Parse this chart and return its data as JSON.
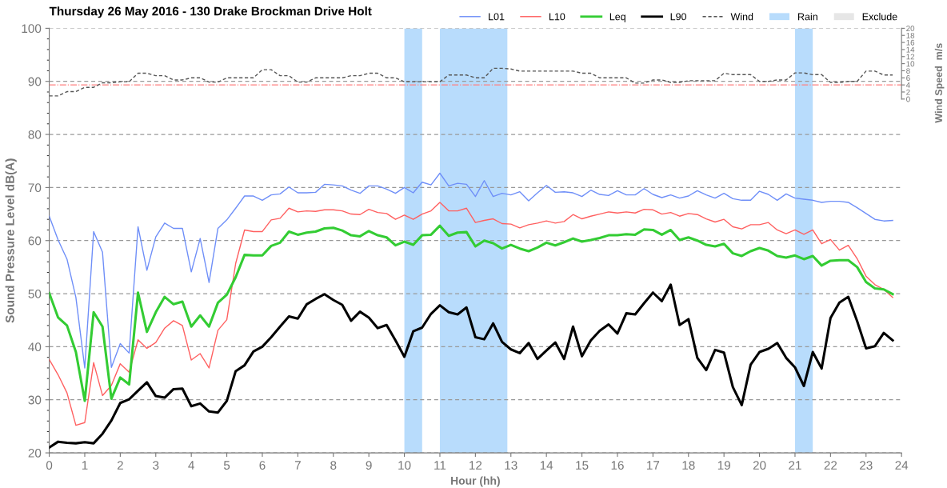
{
  "chart_data": {
    "type": "line",
    "title": "Thursday 26 May 2016 - 130 Drake Brockman Drive Holt",
    "xlabel": "Hour (hh)",
    "ylabel": "Sound Pressure Level dB(A)",
    "y2label": "Wind Speed  m/s",
    "x": [
      0,
      0.25,
      0.5,
      0.75,
      1,
      1.25,
      1.5,
      1.75,
      2,
      2.25,
      2.5,
      2.75,
      3,
      3.25,
      3.5,
      3.75,
      4,
      4.25,
      4.5,
      4.75,
      5,
      5.25,
      5.5,
      5.75,
      6,
      6.25,
      6.5,
      6.75,
      7,
      7.25,
      7.5,
      7.75,
      8,
      8.25,
      8.5,
      8.75,
      9,
      9.25,
      9.5,
      9.75,
      10,
      10.25,
      10.5,
      10.75,
      11,
      11.25,
      11.5,
      11.75,
      12,
      12.25,
      12.5,
      12.75,
      13,
      13.25,
      13.5,
      13.75,
      14,
      14.25,
      14.5,
      14.75,
      15,
      15.25,
      15.5,
      15.75,
      16,
      16.25,
      16.5,
      16.75,
      17,
      17.25,
      17.5,
      17.75,
      18,
      18.25,
      18.5,
      18.75,
      19,
      19.25,
      19.5,
      19.75,
      20,
      20.25,
      20.5,
      20.75,
      21,
      21.25,
      21.5,
      21.75,
      22,
      22.25,
      22.5,
      22.75,
      23,
      23.25,
      23.5,
      23.75
    ],
    "xlim": [
      0,
      24
    ],
    "xticks": [
      0,
      1,
      2,
      3,
      4,
      5,
      6,
      7,
      8,
      9,
      10,
      11,
      12,
      13,
      14,
      15,
      16,
      17,
      18,
      19,
      20,
      21,
      22,
      23,
      24
    ],
    "ylim": [
      20,
      100
    ],
    "yticks": [
      20,
      30,
      40,
      50,
      60,
      70,
      80,
      90,
      100
    ],
    "y2lim": [
      -100,
      20
    ],
    "y2ticks": [
      0,
      2,
      4,
      6,
      8,
      10,
      12,
      14,
      16,
      18,
      20
    ],
    "grid": "y",
    "legend": "top right",
    "series": [
      {
        "name": "L01",
        "color": "#6f8ff8",
        "values": [
          64.6,
          60.1,
          56.5,
          49.3,
          36.0,
          61.7,
          57.8,
          36.1,
          40.6,
          38.8,
          62.6,
          54.4,
          60.7,
          63.3,
          62.3,
          62.3,
          54.1,
          60.4,
          52.1,
          62.3,
          63.9,
          66.1,
          68.4,
          68.4,
          67.6,
          68.6,
          68.8,
          70.1,
          69.0,
          69.0,
          69.1,
          70.6,
          70.5,
          70.3,
          69.5,
          68.9,
          70.3,
          70.3,
          69.7,
          68.9,
          70.0,
          69.0,
          71.0,
          70.5,
          72.7,
          70.3,
          70.8,
          70.6,
          68.3,
          71.3,
          68.3,
          68.9,
          68.6,
          69.2,
          67.5,
          69.0,
          70.4,
          69.1,
          69.2,
          69.0,
          68.3,
          69.5,
          68.7,
          68.5,
          69.4,
          68.6,
          68.6,
          69.8,
          68.7,
          68.1,
          68.6,
          68.0,
          68.4,
          69.4,
          68.6,
          68.0,
          68.9,
          67.9,
          67.6,
          67.6,
          69.3,
          68.7,
          67.6,
          68.8,
          68.0,
          67.8,
          67.6,
          67.2,
          67.4,
          67.4,
          67.2,
          66.2,
          65.1,
          64.0,
          63.7,
          63.8
        ]
      },
      {
        "name": "L10",
        "color": "#ff6060",
        "values": [
          37.6,
          34.7,
          31.3,
          25.2,
          25.7,
          37.0,
          30.8,
          32.7,
          36.8,
          35.2,
          41.3,
          39.7,
          40.8,
          43.5,
          44.9,
          44.0,
          37.5,
          38.7,
          36.0,
          43.1,
          45.1,
          55.7,
          62.0,
          61.7,
          61.7,
          63.9,
          64.2,
          66.1,
          65.4,
          65.6,
          65.5,
          65.8,
          65.8,
          65.6,
          65.0,
          64.9,
          65.9,
          65.3,
          65.1,
          64.0,
          64.8,
          64.0,
          65.0,
          65.6,
          67.2,
          65.6,
          65.6,
          66.1,
          63.4,
          63.8,
          64.1,
          63.2,
          63.1,
          62.4,
          63.0,
          63.3,
          63.7,
          63.3,
          63.6,
          64.9,
          64.1,
          64.6,
          65.0,
          65.4,
          65.2,
          65.4,
          65.2,
          65.9,
          65.8,
          65.0,
          65.3,
          64.6,
          65.1,
          64.9,
          64.1,
          63.5,
          64.0,
          62.6,
          62.2,
          63.0,
          63.0,
          63.4,
          62.0,
          61.3,
          62.0,
          61.2,
          62.0,
          59.4,
          60.2,
          58.2,
          59.1,
          56.6,
          53.3,
          51.7,
          50.8,
          49.3
        ]
      },
      {
        "name": "Leq",
        "color": "#33cc33",
        "values": [
          50.1,
          45.5,
          44.0,
          39.0,
          29.8,
          46.5,
          43.8,
          30.2,
          34.2,
          32.9,
          50.2,
          42.8,
          46.5,
          49.4,
          48.0,
          48.5,
          43.8,
          45.9,
          43.8,
          48.3,
          49.8,
          53.1,
          57.3,
          57.2,
          57.2,
          59.0,
          59.6,
          61.7,
          61.1,
          61.5,
          61.7,
          62.3,
          62.4,
          61.9,
          61.0,
          60.8,
          61.8,
          61.0,
          60.6,
          59.1,
          59.8,
          59.2,
          61.0,
          61.1,
          62.8,
          60.9,
          61.5,
          61.6,
          58.9,
          60.0,
          59.5,
          58.5,
          59.2,
          58.5,
          58.0,
          58.7,
          59.6,
          59.1,
          59.7,
          60.4,
          59.8,
          60.1,
          60.5,
          61.0,
          61.0,
          61.2,
          61.1,
          62.1,
          62.0,
          61.1,
          62.0,
          60.1,
          60.6,
          60.0,
          59.2,
          58.9,
          59.4,
          57.6,
          57.1,
          58.0,
          58.6,
          58.1,
          57.1,
          56.8,
          57.2,
          56.5,
          57.1,
          55.3,
          56.2,
          56.3,
          56.3,
          55.0,
          52.2,
          51.0,
          50.8,
          49.9
        ]
      },
      {
        "name": "L90",
        "color": "#000000",
        "values": [
          21.0,
          22.1,
          21.9,
          21.8,
          22.0,
          21.8,
          23.6,
          26.1,
          29.4,
          30.1,
          31.7,
          33.3,
          30.7,
          30.4,
          32.0,
          32.1,
          28.8,
          29.3,
          27.8,
          27.6,
          29.8,
          35.4,
          36.5,
          39.1,
          40.0,
          41.8,
          43.8,
          45.7,
          45.3,
          48.0,
          49.0,
          49.9,
          48.8,
          47.9,
          44.9,
          46.6,
          45.5,
          43.5,
          44.1,
          41.2,
          38.1,
          42.9,
          43.6,
          46.2,
          47.8,
          46.5,
          46.1,
          47.4,
          41.8,
          41.4,
          44.4,
          40.9,
          39.5,
          38.8,
          40.7,
          37.7,
          39.3,
          40.8,
          37.7,
          43.8,
          38.2,
          41.2,
          43.0,
          44.2,
          42.5,
          46.3,
          46.1,
          48.2,
          50.2,
          48.6,
          51.7,
          44.1,
          45.2,
          37.9,
          35.6,
          39.4,
          38.9,
          32.4,
          29.0,
          36.6,
          39.0,
          39.6,
          40.7,
          37.9,
          36.1,
          32.6,
          39.0,
          35.9,
          45.4,
          48.3,
          49.4,
          44.8,
          39.7,
          40.1,
          42.6,
          41.2
        ]
      },
      {
        "name": "Wind",
        "color": "#555555",
        "axis": "y2",
        "line_style": "dashed",
        "values": [
          0.9,
          0.9,
          2.1,
          2.1,
          3.3,
          3.3,
          4.6,
          4.6,
          4.9,
          4.9,
          7.3,
          7.3,
          6.6,
          6.6,
          5.4,
          5.4,
          6.0,
          6.0,
          4.8,
          4.8,
          6.0,
          6.0,
          6.0,
          6.0,
          8.3,
          8.3,
          6.6,
          6.6,
          4.8,
          4.8,
          6.0,
          6.0,
          6.0,
          6.0,
          6.6,
          6.6,
          7.3,
          7.3,
          6.0,
          6.0,
          4.9,
          4.9,
          4.9,
          4.9,
          4.9,
          6.8,
          6.8,
          6.8,
          6.0,
          6.0,
          8.7,
          8.7,
          8.5,
          7.9,
          7.9,
          7.9,
          7.9,
          7.9,
          7.9,
          7.9,
          7.3,
          7.3,
          6.0,
          6.0,
          6.0,
          6.0,
          4.5,
          4.5,
          5.4,
          5.4,
          4.7,
          4.7,
          5.2,
          5.2,
          5.2,
          5.2,
          7.3,
          6.9,
          6.9,
          6.9,
          5.0,
          5.0,
          5.4,
          5.4,
          7.4,
          7.4,
          6.9,
          6.9,
          4.7,
          4.7,
          5.0,
          5.0,
          7.9,
          7.9,
          6.8,
          6.8
        ]
      },
      {
        "name": "Exclude",
        "type": "area",
        "color": "#e6e6e6",
        "values": [
          null,
          null,
          null,
          null,
          null,
          null,
          null,
          null,
          null,
          null,
          null,
          null,
          null,
          null,
          null,
          null,
          null,
          null,
          null,
          null,
          null,
          null,
          null,
          null,
          null,
          null,
          null,
          null,
          null,
          null,
          null,
          null,
          null,
          null,
          null,
          null,
          null,
          null,
          null,
          null,
          null,
          null,
          null,
          null,
          null,
          null,
          null,
          null,
          null,
          null,
          null,
          null,
          null,
          null,
          null,
          null,
          null,
          null,
          null,
          null,
          null,
          null,
          null,
          null,
          null,
          null,
          null,
          null,
          null,
          null,
          null,
          null,
          null,
          null,
          null,
          null,
          null,
          null,
          null,
          null,
          null,
          null,
          null,
          null,
          null,
          null,
          null,
          null,
          null,
          null,
          null,
          null,
          null,
          null,
          null,
          null
        ]
      }
    ],
    "bands": [
      {
        "axis": "x",
        "from": 10,
        "to": 10.5,
        "label": "Rain",
        "color": "#b8dcfc"
      },
      {
        "axis": "x",
        "from": 11,
        "to": 12.9,
        "color": "#b8dcfc"
      },
      {
        "axis": "x",
        "from": 21,
        "to": 21.5,
        "color": "#b8dcfc"
      }
    ],
    "ref_lines": [
      {
        "axis": "y2",
        "value": 4,
        "color": "#ff8080",
        "line_style": "dashdot"
      }
    ]
  }
}
